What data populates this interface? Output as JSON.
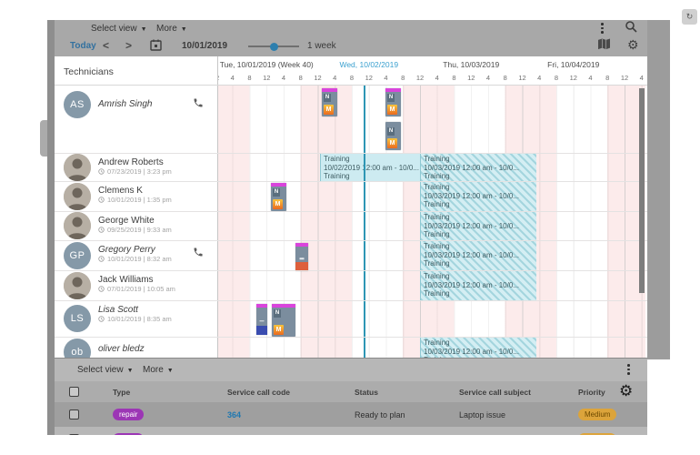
{
  "topbar": {
    "select_view_label": "Select view",
    "more_label": "More"
  },
  "datebar": {
    "today_label": "Today",
    "prev_label": "<",
    "next_label": ">",
    "date": "10/01/2019",
    "zoom_label": "1 week"
  },
  "scheduler": {
    "panel_title": "Technicians",
    "tick_labels": [
      "12",
      "4",
      "8",
      "12",
      "4",
      "8"
    ],
    "days": [
      {
        "label": "Tue, 10/01/2019 (Week 40)",
        "current": false
      },
      {
        "label": "Wed, 10/02/2019",
        "current": true
      },
      {
        "label": "Thu, 10/03/2019",
        "current": false
      },
      {
        "label": "Fri, 10/04/2019",
        "current": false
      }
    ],
    "technicians": [
      {
        "name": "Amrish Singh",
        "initials": "AS",
        "photo": false,
        "italic": true,
        "phone": true,
        "last_update": ""
      },
      {
        "name": "Andrew Roberts",
        "initials": "",
        "photo": true,
        "italic": false,
        "phone": false,
        "last_update": "07/23/2019 | 3:23 pm"
      },
      {
        "name": "Clemens K",
        "initials": "",
        "photo": true,
        "italic": false,
        "phone": false,
        "last_update": "10/01/2019 | 1:35 pm"
      },
      {
        "name": "George White",
        "initials": "",
        "photo": true,
        "italic": false,
        "phone": false,
        "last_update": "09/25/2019 | 9:33 am"
      },
      {
        "name": "Gregory Perry",
        "initials": "GP",
        "photo": false,
        "italic": true,
        "phone": true,
        "last_update": "10/01/2019 | 8:32 am"
      },
      {
        "name": "Jack Williams",
        "initials": "",
        "photo": true,
        "italic": false,
        "phone": false,
        "last_update": "07/01/2019 | 10:05 am"
      },
      {
        "name": "Lisa Scott",
        "initials": "LS",
        "photo": false,
        "italic": true,
        "phone": false,
        "last_update": "10/01/2019 | 8:35 am"
      },
      {
        "name": "oliver bledz",
        "initials": "ob",
        "photo": false,
        "italic": true,
        "phone": false,
        "last_update": ""
      }
    ],
    "cards": [
      {
        "type_letter": "N",
        "priority_letter": "M",
        "has_top": true,
        "bottom_color": ""
      },
      {
        "type_letter": "N",
        "priority_letter": "M",
        "has_top": true,
        "bottom_color": ""
      },
      {
        "type_letter": "N",
        "priority_letter": "M",
        "has_top": false,
        "bottom_color": ""
      },
      {
        "type_letter": "N",
        "priority_letter": "M",
        "has_top": true,
        "bottom_color": ""
      },
      {
        "type_letter": "",
        "priority_letter": "",
        "has_top": true,
        "bottom_color": "#dd5f3c"
      },
      {
        "type_letter": "",
        "priority_letter": "",
        "has_top": true,
        "bottom_color": "#3a4db0"
      },
      {
        "type_letter": "N",
        "priority_letter": "M",
        "has_top": true,
        "bottom_color": ""
      }
    ],
    "trainings": [
      {
        "title": "Training",
        "period": "10/02/2019 12:00 am - 10/0...",
        "subtitle": "Training",
        "hatched": false
      },
      {
        "title": "Training",
        "period": "10/03/2019 12:00 am - 10/0...",
        "subtitle": "Training",
        "hatched": true
      },
      {
        "title": "Training",
        "period": "10/03/2019 12:00 am - 10/0...",
        "subtitle": "Training",
        "hatched": true
      },
      {
        "title": "Training",
        "period": "10/03/2019 12:00 am - 10/0...",
        "subtitle": "Training",
        "hatched": true
      },
      {
        "title": "Training",
        "period": "10/03/2019 12:00 am - 10/0...",
        "subtitle": "Training",
        "hatched": true
      },
      {
        "title": "Training",
        "period": "10/03/2019 12:00 am - 10/0...",
        "subtitle": "Training",
        "hatched": true
      },
      {
        "title": "Training",
        "period": "10/03/2019 12:00 am - 10/0...",
        "subtitle": "Training",
        "hatched": true
      }
    ],
    "colors": {
      "current_day": "#3aa0cf",
      "now_line": "#2e96b4",
      "offhours_band": "#fcebeb",
      "training_bg": "#cdebf1",
      "card_header": "#d944dc",
      "card_body": "#7b8d9e",
      "priority_badge": "#ef8a1f"
    }
  },
  "table": {
    "select_view_label": "Select view",
    "more_label": "More",
    "columns": [
      "Type",
      "Service call code",
      "Status",
      "Service call subject",
      "Priority"
    ],
    "rows": [
      {
        "type": "repair",
        "code": "364",
        "status": "Ready to plan",
        "subject": "Laptop issue",
        "priority": "Medium"
      },
      {
        "type": "repair",
        "code": "",
        "status": "",
        "subject": "",
        "priority": "Medium"
      }
    ]
  }
}
